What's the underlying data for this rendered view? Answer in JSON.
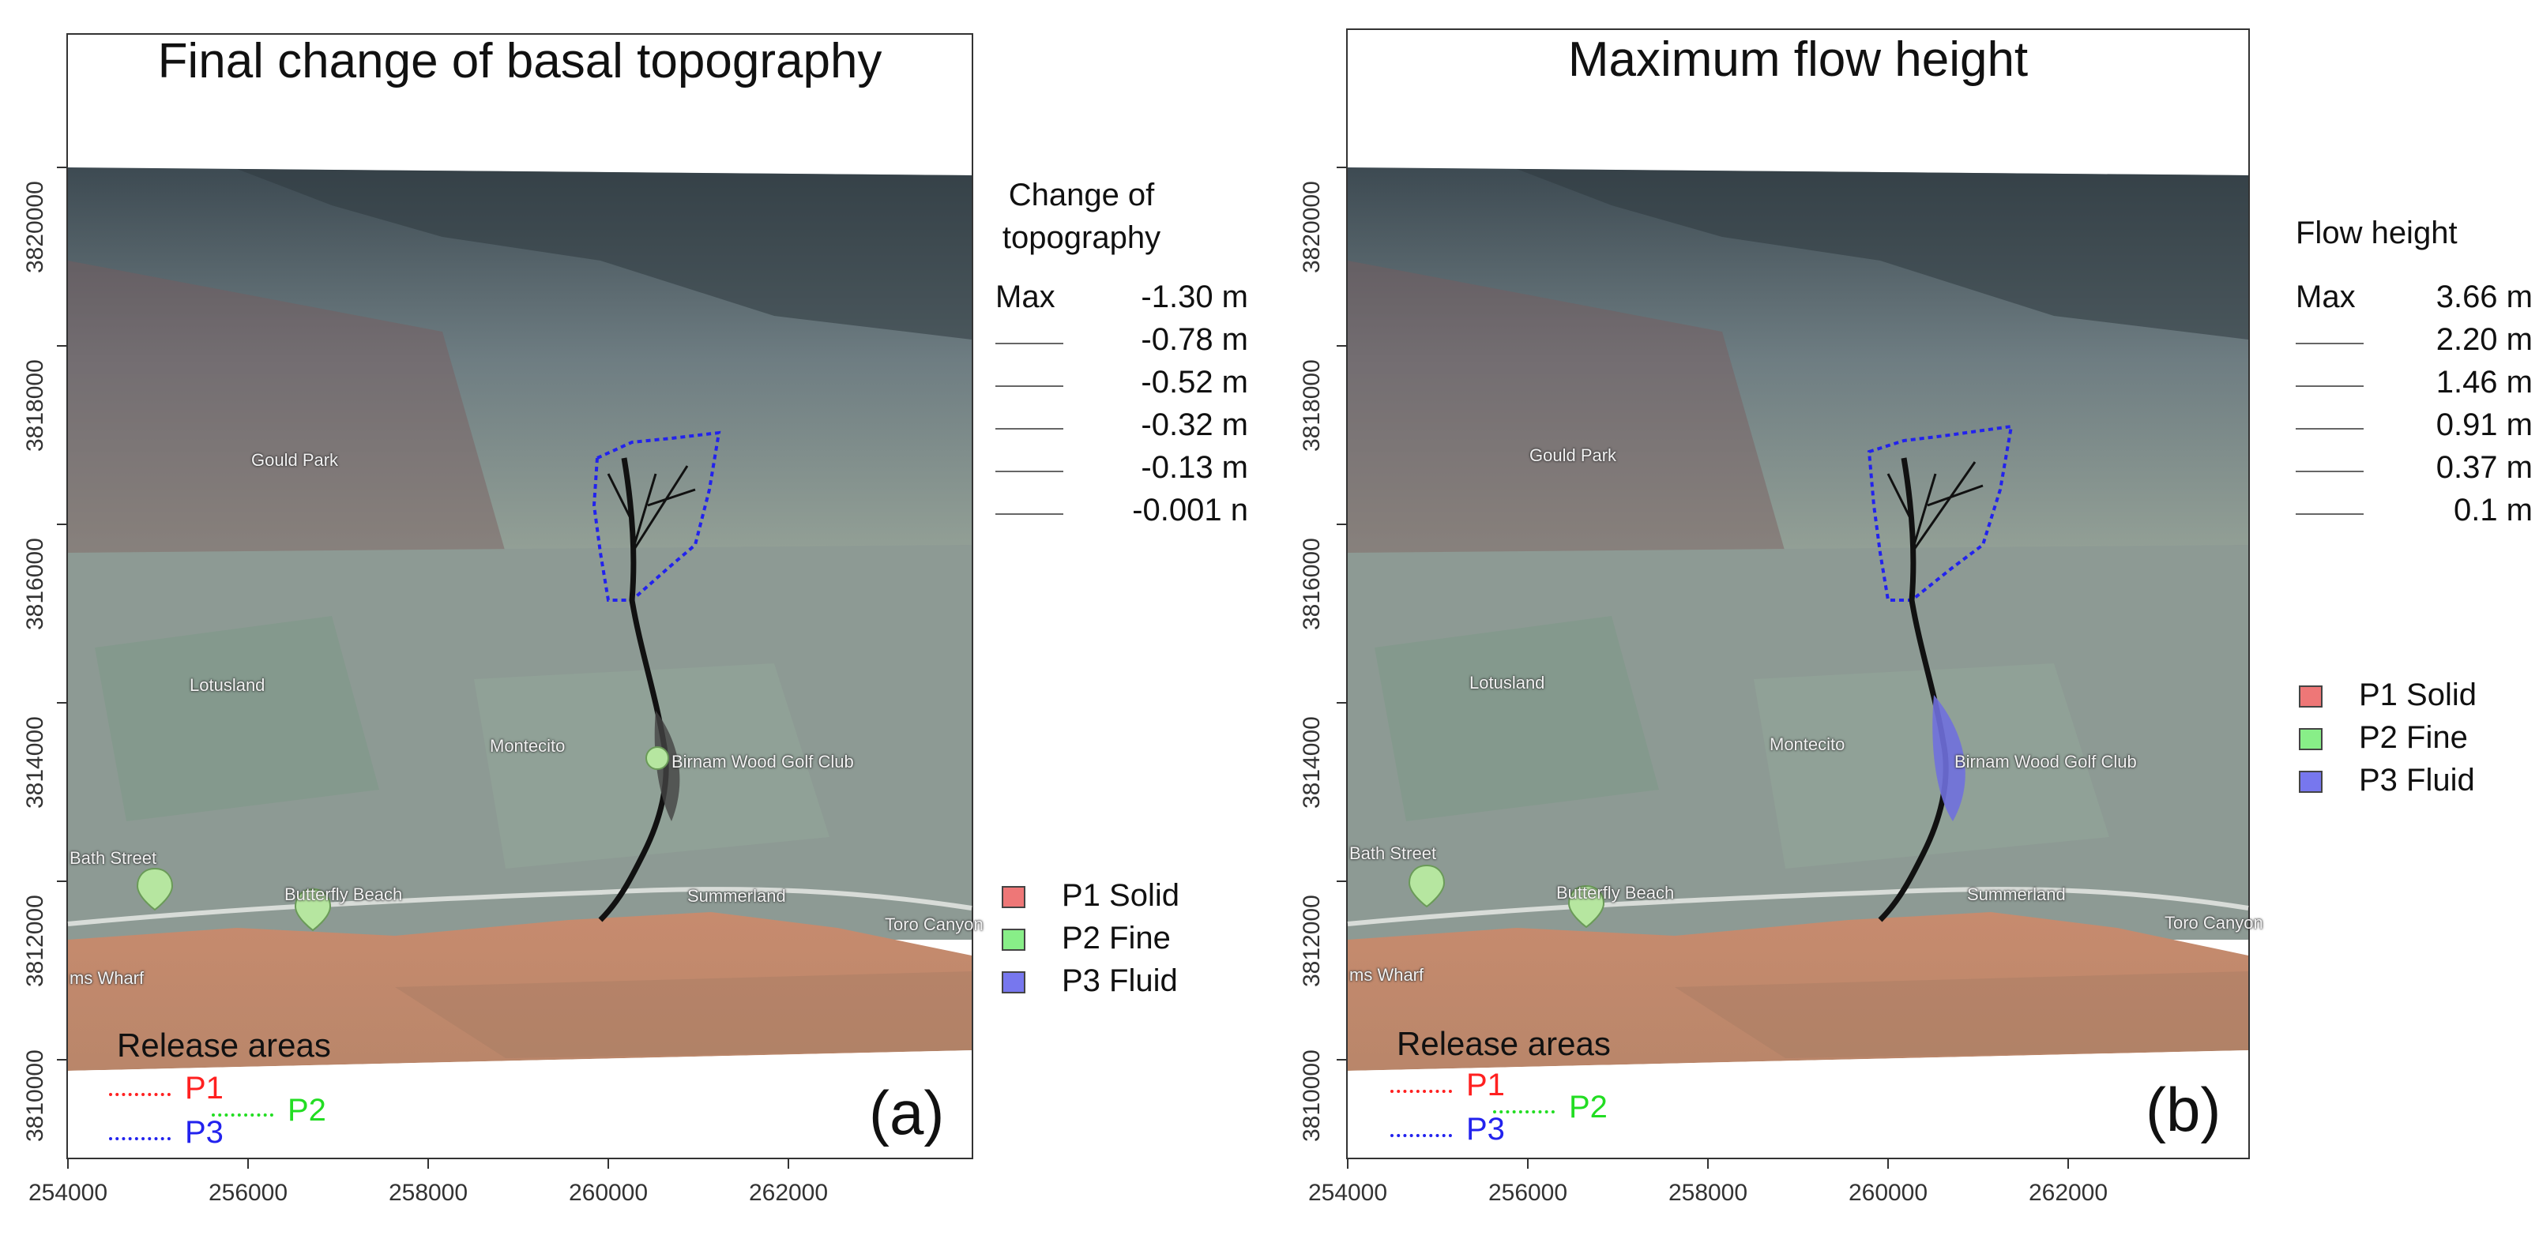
{
  "colors": {
    "release_p1": "#ff2020",
    "release_p2": "#22dd22",
    "release_p3": "#2222ee",
    "solid": "#ee7777",
    "fine": "#88ee88",
    "fluid": "#7777ee",
    "flow": "#111111"
  },
  "map_labels": [
    "Gould Park",
    "Lotusland",
    "Montecito",
    "Birnam Wood Golf Club",
    "Butterfly Beach",
    "Summerland",
    "Toro Canyon",
    "ms Wharf",
    "Bath Street"
  ],
  "panels": [
    {
      "title": "Final change of basal topography",
      "legend_title": "Change of topography",
      "legend_max_label": "Max",
      "legend_values": [
        "-1.30  m",
        "-0.78  m",
        "-0.52  m",
        "-0.32  m",
        "-0.13  m",
        "-0.001  n"
      ],
      "classes": [
        "P1 Solid",
        "P2 Fine",
        "P3 Fluid"
      ],
      "release_title": "Release areas",
      "release_labels": [
        "P1",
        "P2",
        "P3"
      ],
      "panel_letter": "(a)",
      "y_ticks": [
        "3820000",
        "3818000",
        "3816000",
        "3814000",
        "3812000",
        "3810000"
      ],
      "x_ticks": [
        "254000",
        "256000",
        "258000",
        "260000",
        "262000"
      ],
      "flow_fill": "#444444"
    },
    {
      "title": "Maximum flow height",
      "legend_title": "Flow height",
      "legend_max_label": "Max",
      "legend_values": [
        "3.66  m",
        "2.20  m",
        "1.46  m",
        "0.91  m",
        "0.37  m",
        "0.1  m"
      ],
      "classes": [
        "P1 Solid",
        "P2 Fine",
        "P3 Fluid"
      ],
      "release_title": "Release areas",
      "release_labels": [
        "P1",
        "P2",
        "P3"
      ],
      "panel_letter": "(b)",
      "y_ticks": [
        "3820000",
        "3818000",
        "3816000",
        "3814000",
        "3812000",
        "3810000"
      ],
      "x_ticks": [
        "254000",
        "256000",
        "258000",
        "260000",
        "262000"
      ],
      "flow_fill": "#7070dd"
    }
  ]
}
